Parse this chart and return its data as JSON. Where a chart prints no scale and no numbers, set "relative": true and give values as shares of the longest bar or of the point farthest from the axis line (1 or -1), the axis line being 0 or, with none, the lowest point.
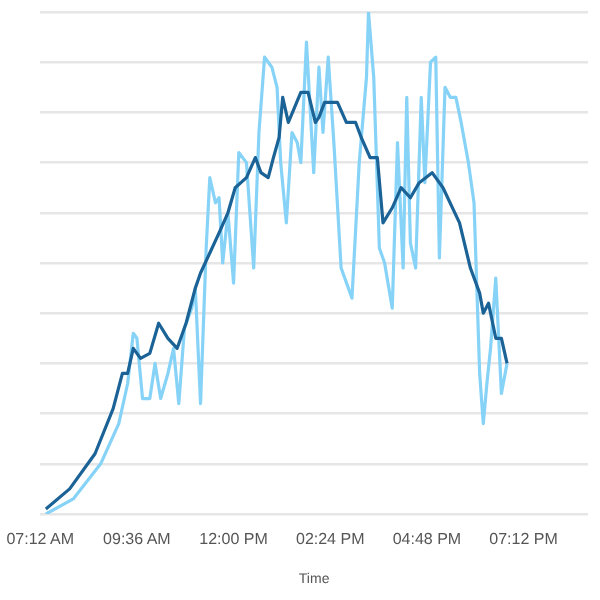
{
  "chart_data": {
    "type": "line",
    "relative": true,
    "xlabel": "Time",
    "grid": "y",
    "marker": "none",
    "line_style": "solid",
    "xlim": [
      7.2,
      20.8
    ],
    "xticks": [
      {
        "value": 7.2,
        "label": "07:12 AM"
      },
      {
        "value": 9.6,
        "label": "09:36 AM"
      },
      {
        "value": 12,
        "label": "12:00 PM"
      },
      {
        "value": 14.4,
        "label": "02:24 PM"
      },
      {
        "value": 16.8,
        "label": "04:48 PM"
      },
      {
        "value": 19.2,
        "label": "07:12 PM"
      }
    ],
    "series": [
      {
        "color": "#86d3f7",
        "x": [
          7.34,
          8.02,
          8.7,
          9.15,
          9.37,
          9.51,
          9.6,
          9.74,
          9.92,
          10.05,
          10.19,
          10.37,
          10.51,
          10.64,
          10.78,
          10.96,
          11.05,
          11.18,
          11.32,
          11.41,
          11.55,
          11.64,
          11.73,
          11.86,
          12.0,
          12.13,
          12.32,
          12.5,
          12.63,
          12.77,
          12.95,
          13.08,
          13.17,
          13.31,
          13.45,
          13.58,
          13.67,
          13.81,
          13.99,
          14.12,
          14.22,
          14.35,
          14.49,
          14.67,
          14.94,
          15.12,
          15.3,
          15.35,
          15.48,
          15.62,
          15.75,
          15.94,
          16.07,
          16.21,
          16.3,
          16.39,
          16.52,
          16.66,
          16.75,
          16.89,
          17.02,
          17.11,
          17.25,
          17.38,
          17.52,
          17.65,
          17.74,
          17.83,
          17.97,
          18.11,
          18.2,
          18.29,
          18.38,
          18.51,
          18.65,
          18.79
        ],
        "values": [
          0.0,
          0.03,
          0.1,
          0.18,
          0.26,
          0.36,
          0.35,
          0.23,
          0.23,
          0.3,
          0.23,
          0.28,
          0.33,
          0.22,
          0.37,
          0.41,
          0.45,
          0.22,
          0.53,
          0.67,
          0.62,
          0.63,
          0.5,
          0.6,
          0.46,
          0.72,
          0.7,
          0.49,
          0.76,
          0.91,
          0.89,
          0.85,
          0.7,
          0.58,
          0.76,
          0.74,
          0.7,
          0.94,
          0.68,
          0.89,
          0.76,
          0.91,
          0.74,
          0.49,
          0.43,
          0.7,
          0.87,
          1.0,
          0.87,
          0.53,
          0.5,
          0.41,
          0.74,
          0.49,
          0.83,
          0.54,
          0.49,
          0.83,
          0.66,
          0.9,
          0.91,
          0.51,
          0.85,
          0.83,
          0.83,
          0.78,
          0.74,
          0.7,
          0.62,
          0.28,
          0.18,
          0.26,
          0.33,
          0.47,
          0.24,
          0.3
        ]
      },
      {
        "color": "#1b6396",
        "x": [
          7.34,
          7.93,
          8.56,
          9.01,
          9.24,
          9.37,
          9.51,
          9.69,
          9.92,
          10.14,
          10.37,
          10.6,
          10.82,
          11.05,
          11.18,
          11.41,
          11.64,
          11.86,
          12.04,
          12.32,
          12.54,
          12.68,
          12.86,
          12.99,
          13.13,
          13.22,
          13.36,
          13.67,
          13.85,
          14.03,
          14.12,
          14.26,
          14.58,
          14.8,
          15.03,
          15.17,
          15.39,
          15.57,
          15.71,
          15.94,
          16.16,
          16.39,
          16.61,
          16.93,
          17.2,
          17.61,
          17.88,
          18.11,
          18.2,
          18.33,
          18.51,
          18.65,
          18.79
        ],
        "values": [
          0.01,
          0.05,
          0.12,
          0.21,
          0.28,
          0.28,
          0.33,
          0.31,
          0.32,
          0.38,
          0.35,
          0.33,
          0.38,
          0.45,
          0.48,
          0.52,
          0.56,
          0.6,
          0.65,
          0.67,
          0.71,
          0.68,
          0.67,
          0.71,
          0.75,
          0.83,
          0.78,
          0.84,
          0.84,
          0.78,
          0.79,
          0.82,
          0.82,
          0.78,
          0.78,
          0.75,
          0.71,
          0.71,
          0.58,
          0.61,
          0.65,
          0.63,
          0.66,
          0.68,
          0.65,
          0.58,
          0.49,
          0.44,
          0.4,
          0.42,
          0.35,
          0.35,
          0.3
        ]
      }
    ]
  }
}
